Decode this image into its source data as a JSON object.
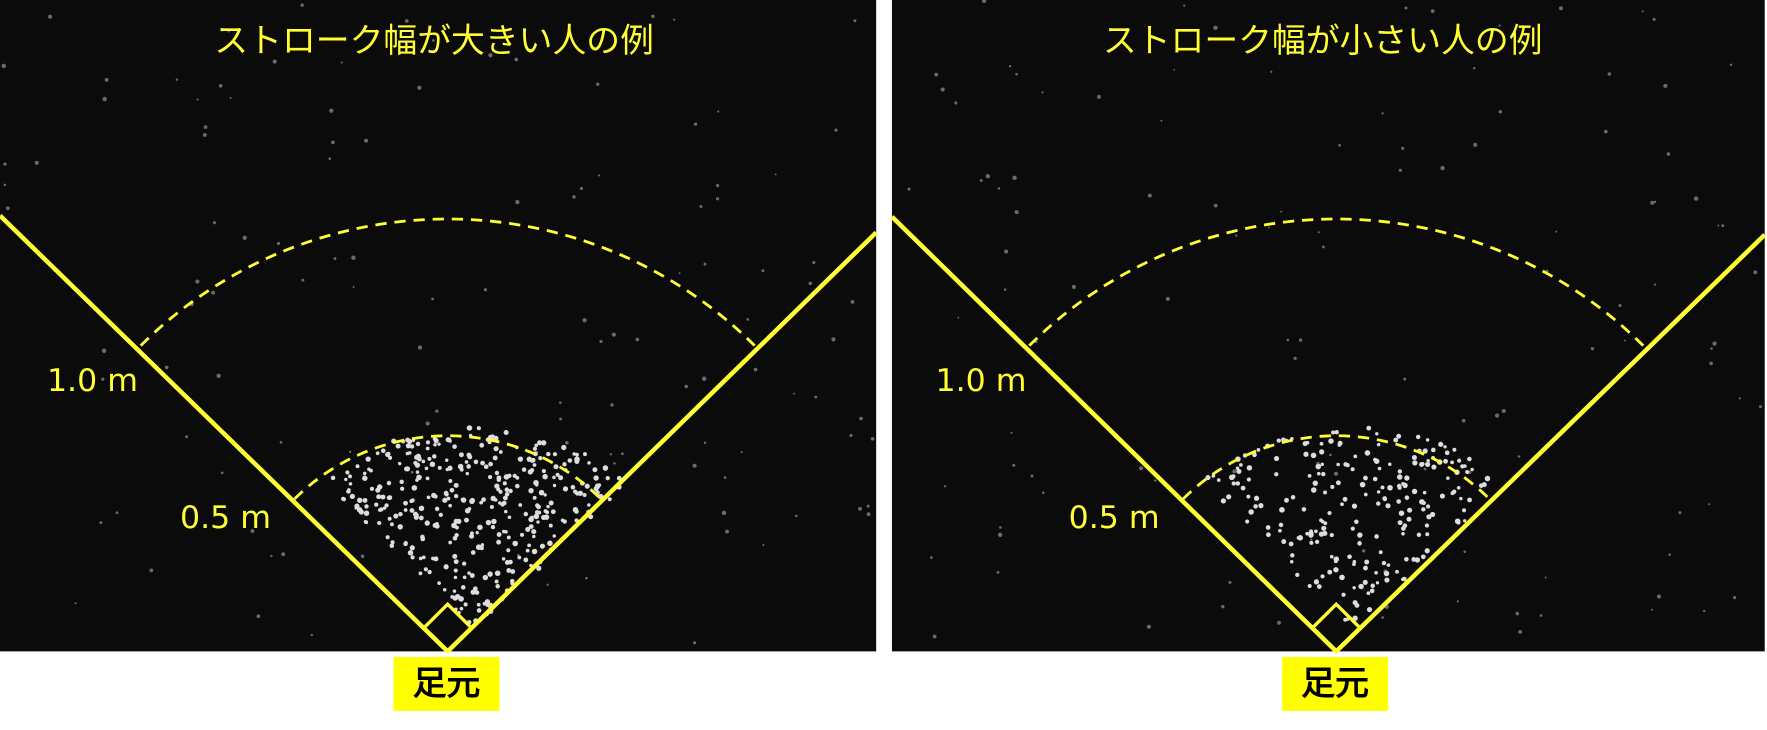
{
  "panels": [
    {
      "title": "ストローク幅が大きい人の例",
      "outer_label": "1.0 m",
      "inner_label": "0.5 m",
      "foot_label": "足元"
    },
    {
      "title": "ストローク幅が小さい人の例",
      "outer_label": "1.0 m",
      "inner_label": "0.5 m",
      "foot_label": "足元"
    }
  ]
}
